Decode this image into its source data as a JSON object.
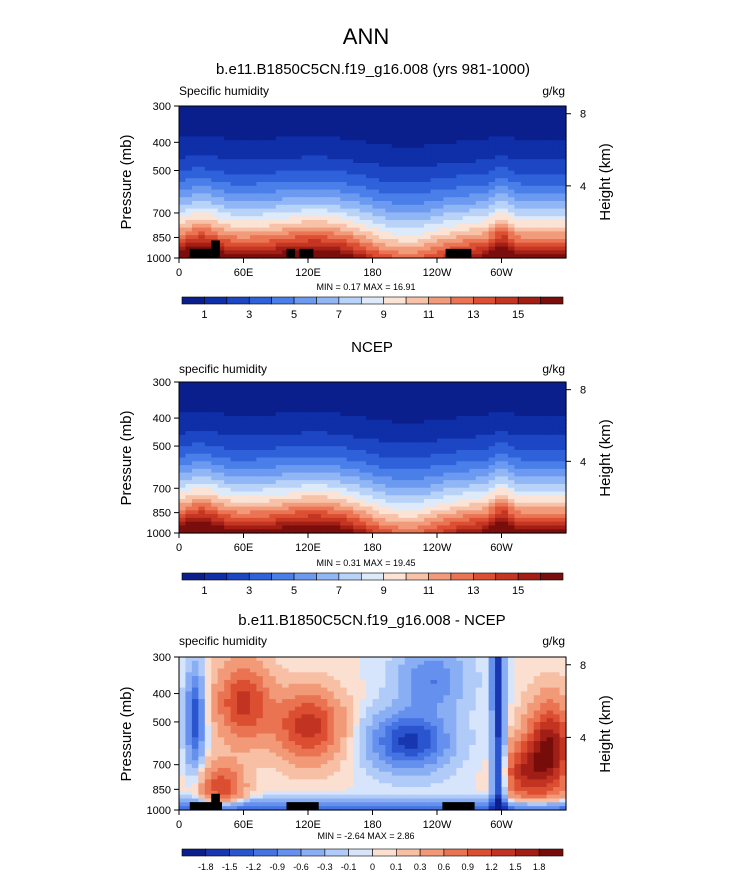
{
  "figure_title": "ANN",
  "unit": "g/kg",
  "y_ticks": [
    "300",
    "400",
    "500",
    "700",
    "850",
    "1000"
  ],
  "y_values": [
    300,
    400,
    500,
    700,
    850,
    1000
  ],
  "height_ticks": [
    "8",
    "4"
  ],
  "height_values_km": [
    8,
    4
  ],
  "x_ticks": [
    "0",
    "60E",
    "120E",
    "180",
    "120W",
    "60W"
  ],
  "x_values": [
    0,
    60,
    120,
    180,
    240,
    300
  ],
  "ylabel": "Pressure (mb)",
  "ylabel_right": "Height (km)",
  "panels": [
    {
      "title": "b.e11.B1850C5CN.f19_g16.008 (yrs 981-1000)",
      "label": "Specific humidity",
      "min_max": "MIN =  0.17  MAX =  16.91"
    },
    {
      "title": "NCEP",
      "label": "specific humidity",
      "min_max": "MIN =  0.31  MAX =  19.45"
    },
    {
      "title": "b.e11.B1850C5CN.f19_g16.008 - NCEP",
      "label": "specific humidity",
      "min_max": "MIN = -2.64  MAX =  2.86"
    }
  ],
  "colorbars": [
    {
      "labels": [
        "1",
        "3",
        "5",
        "7",
        "9",
        "11",
        "13",
        "15"
      ],
      "colors": [
        "#0a1e8c",
        "#0f2fa8",
        "#1c46c4",
        "#2f62da",
        "#4a7ee8",
        "#6b9af0",
        "#90b6f5",
        "#b8d2f8",
        "#ddeafa",
        "#fbe3d6",
        "#f7c2a8",
        "#f29b7a",
        "#ea7454",
        "#dc4f33",
        "#c43522",
        "#a31f16",
        "#7a0e0c"
      ]
    },
    {
      "labels": [
        "1",
        "3",
        "5",
        "7",
        "9",
        "11",
        "13",
        "15"
      ],
      "colors": [
        "#0a1e8c",
        "#0f2fa8",
        "#1c46c4",
        "#2f62da",
        "#4a7ee8",
        "#6b9af0",
        "#90b6f5",
        "#b8d2f8",
        "#ddeafa",
        "#fbe3d6",
        "#f7c2a8",
        "#f29b7a",
        "#ea7454",
        "#dc4f33",
        "#c43522",
        "#a31f16",
        "#7a0e0c"
      ]
    },
    {
      "labels": [
        "-1.8",
        "-1.5",
        "-1.2",
        "-0.9",
        "-0.6",
        "-0.3",
        "-0.1",
        "0",
        "0.1",
        "0.3",
        "0.6",
        "0.9",
        "1.2",
        "1.5",
        "1.8"
      ],
      "colors": [
        "#0a1e8c",
        "#1836b0",
        "#2b55cf",
        "#4573e2",
        "#6590ee",
        "#89aef4",
        "#b0cbf8",
        "#d6e5fb",
        "#fbe0d2",
        "#f7bfa4",
        "#f29a78",
        "#ea7352",
        "#db4e31",
        "#c23421",
        "#a01e15",
        "#770d0b"
      ]
    }
  ],
  "chart_data": [
    {
      "type": "heatmap",
      "title": "b.e11.B1850C5CN.f19_g16.008 (yrs 981-1000)",
      "subtitle": "Specific humidity",
      "units": "g/kg",
      "xlabel": "",
      "ylabel": "Pressure (mb)",
      "ylabel_right": "Height (km)",
      "x_range": [
        0,
        360
      ],
      "y_range": [
        1000,
        300
      ],
      "levels": [
        1,
        2,
        3,
        4,
        5,
        6,
        7,
        8,
        9,
        10,
        11,
        12,
        13,
        14,
        15,
        16
      ],
      "min": 0.17,
      "max": 16.91
    },
    {
      "type": "heatmap",
      "title": "NCEP",
      "subtitle": "specific humidity",
      "units": "g/kg",
      "xlabel": "",
      "ylabel": "Pressure (mb)",
      "ylabel_right": "Height (km)",
      "x_range": [
        0,
        360
      ],
      "y_range": [
        1000,
        300
      ],
      "levels": [
        1,
        2,
        3,
        4,
        5,
        6,
        7,
        8,
        9,
        10,
        11,
        12,
        13,
        14,
        15,
        16
      ],
      "min": 0.31,
      "max": 19.45
    },
    {
      "type": "heatmap",
      "title": "b.e11.B1850C5CN.f19_g16.008 - NCEP",
      "subtitle": "specific humidity",
      "units": "g/kg",
      "xlabel": "",
      "ylabel": "Pressure (mb)",
      "ylabel_right": "Height (km)",
      "x_range": [
        0,
        360
      ],
      "y_range": [
        1000,
        300
      ],
      "levels": [
        -1.8,
        -1.5,
        -1.2,
        -0.9,
        -0.6,
        -0.3,
        -0.1,
        0,
        0.1,
        0.3,
        0.6,
        0.9,
        1.2,
        1.5,
        1.8
      ],
      "min": -2.64,
      "max": 2.86
    }
  ]
}
